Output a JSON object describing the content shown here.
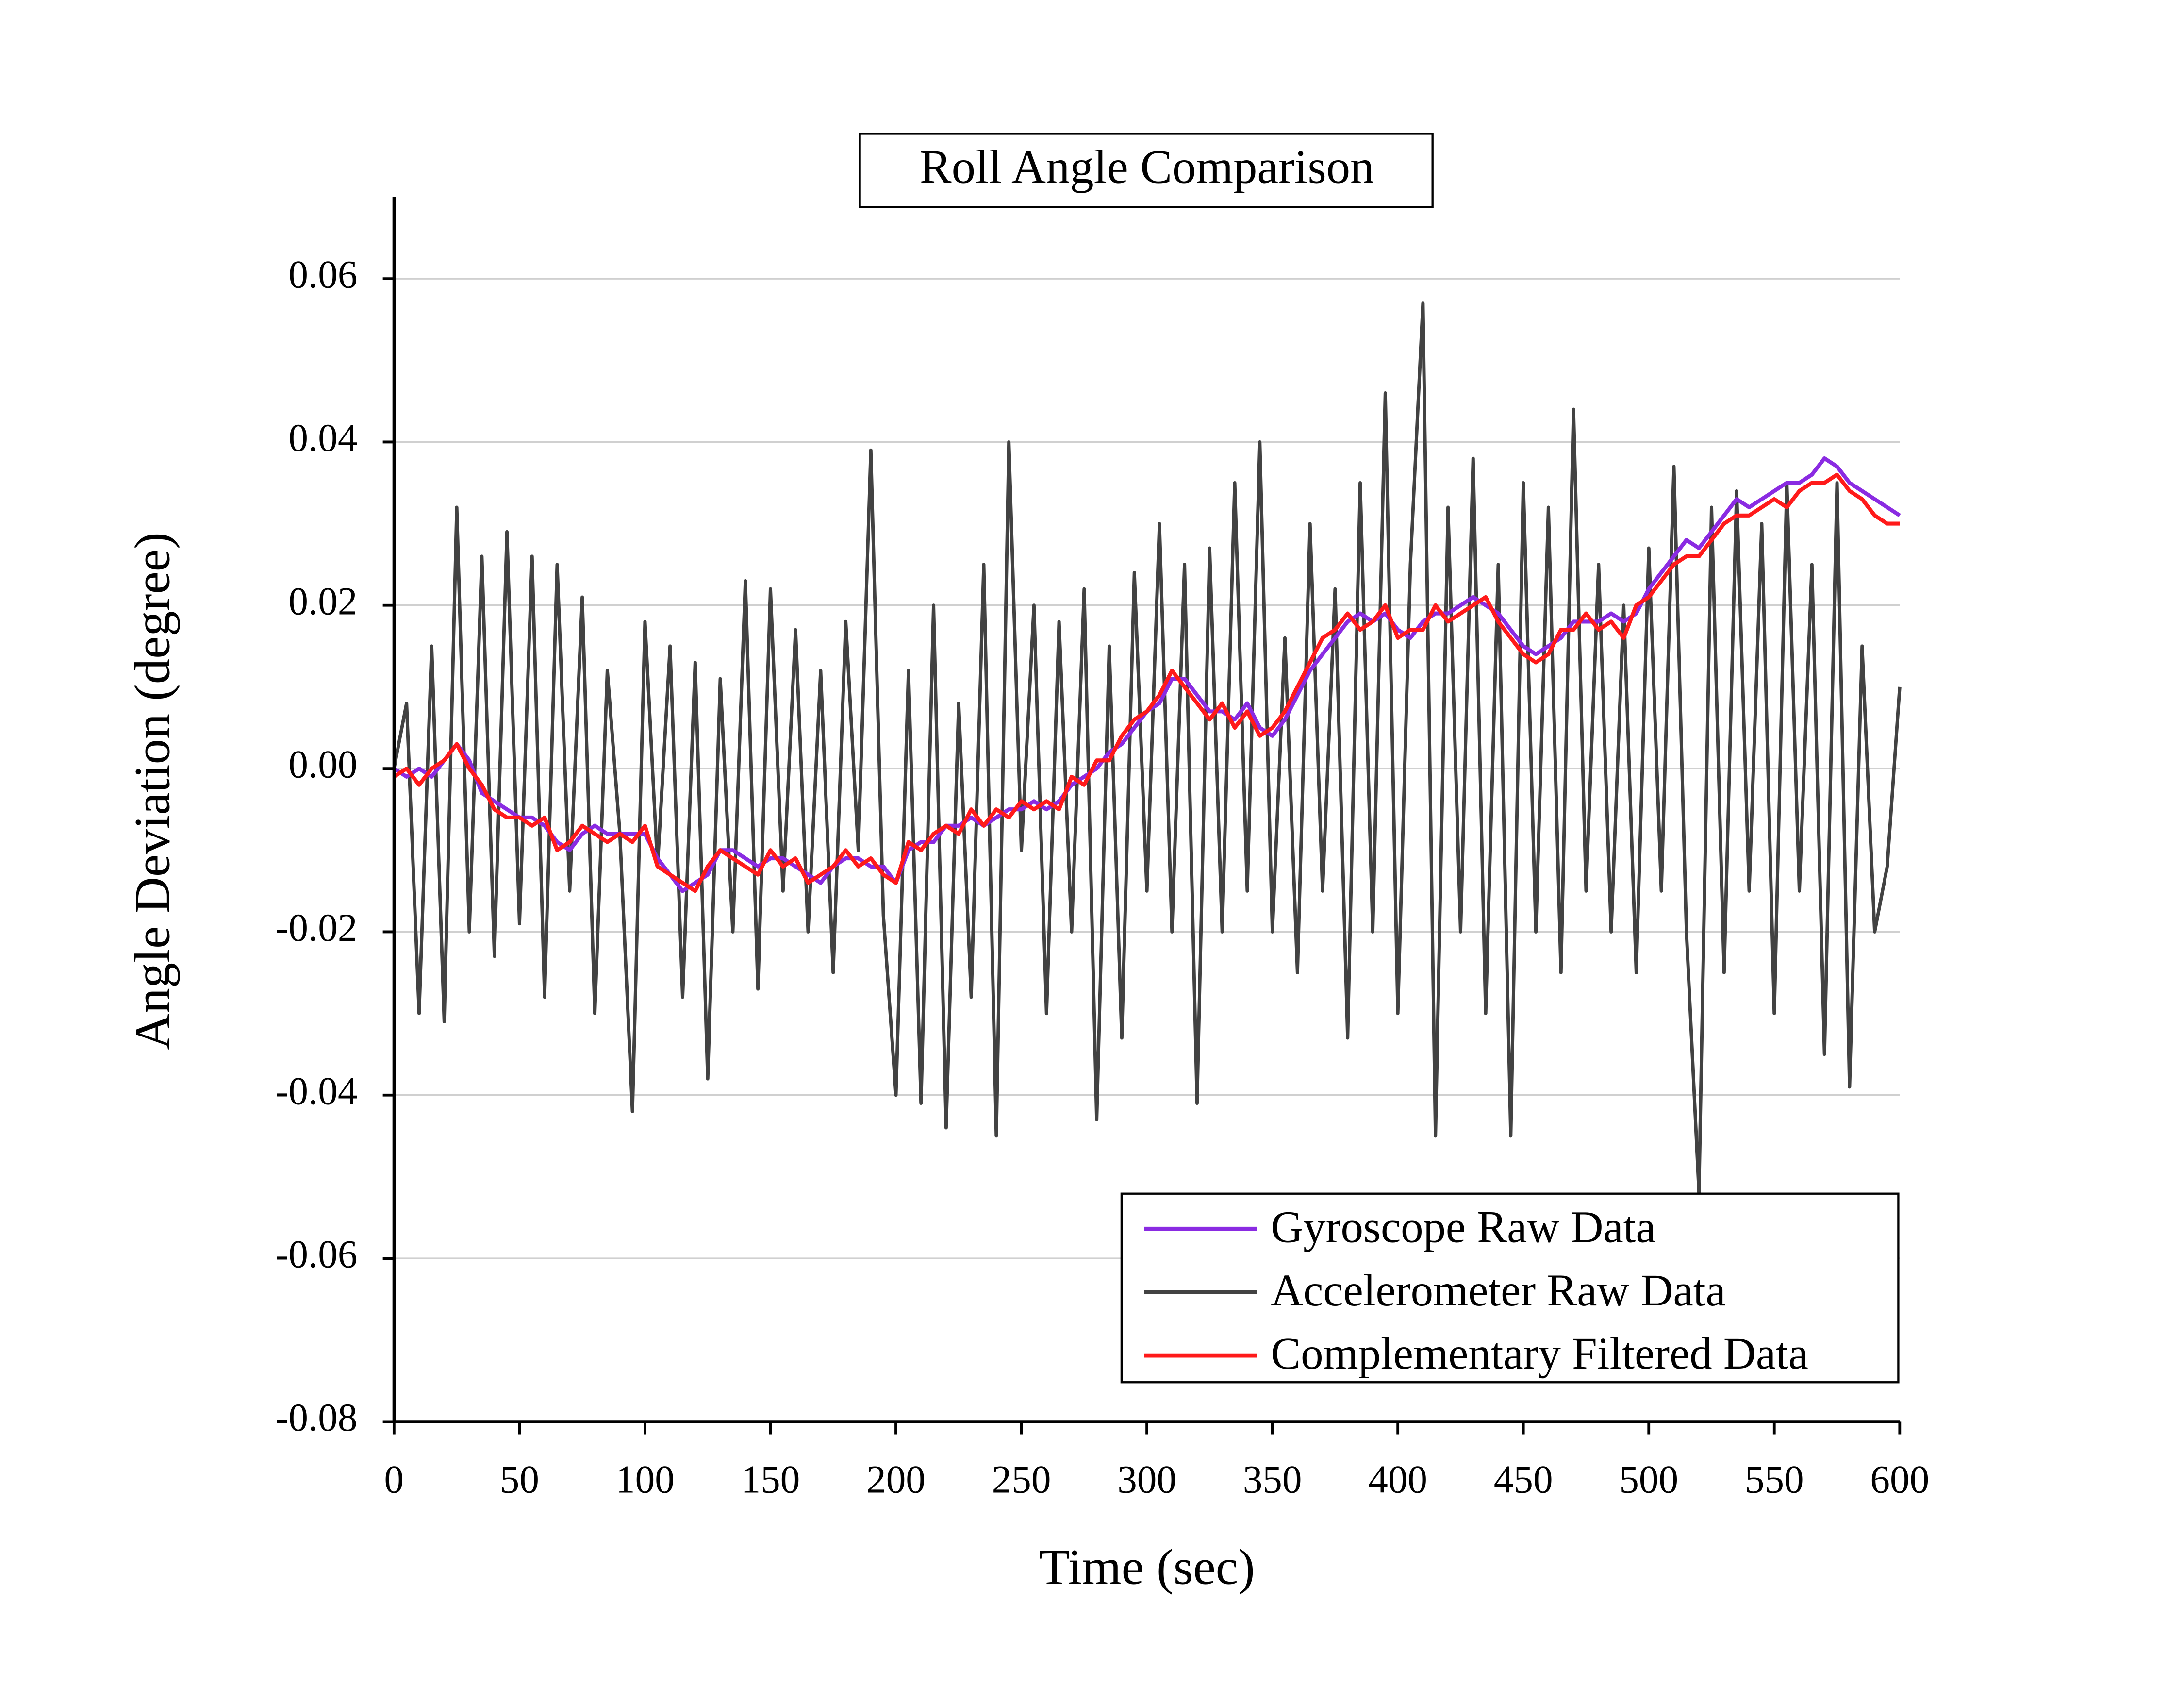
{
  "chart_data": {
    "type": "line",
    "title": "Roll Angle Comparison",
    "x_label": "Time (sec)",
    "y_label": "Angle Deviation (degree)",
    "legend": "lower right",
    "grid": true,
    "xlim": [
      0,
      600
    ],
    "xticks": [
      0,
      50,
      100,
      150,
      200,
      250,
      300,
      350,
      400,
      450,
      500,
      550,
      600
    ],
    "ylim": [
      -0.08,
      0.07
    ],
    "yticks": [
      -0.08,
      -0.06,
      -0.04,
      -0.02,
      {
        "value": 0,
        "label": "0.00"
      },
      0.02,
      0.04,
      0.06
    ],
    "x": [
      0,
      5,
      10,
      15,
      20,
      25,
      30,
      35,
      40,
      45,
      50,
      55,
      60,
      65,
      70,
      75,
      80,
      85,
      90,
      95,
      100,
      105,
      110,
      115,
      120,
      125,
      130,
      135,
      140,
      145,
      150,
      155,
      160,
      165,
      170,
      175,
      180,
      185,
      190,
      195,
      200,
      205,
      210,
      215,
      220,
      225,
      230,
      235,
      240,
      245,
      250,
      255,
      260,
      265,
      270,
      275,
      280,
      285,
      290,
      295,
      300,
      305,
      310,
      315,
      320,
      325,
      330,
      335,
      340,
      345,
      350,
      355,
      360,
      365,
      370,
      375,
      380,
      385,
      390,
      395,
      400,
      405,
      410,
      415,
      420,
      425,
      430,
      435,
      440,
      445,
      450,
      455,
      460,
      465,
      470,
      475,
      480,
      485,
      490,
      495,
      500,
      505,
      510,
      515,
      520,
      525,
      530,
      535,
      540,
      545,
      550,
      555,
      560,
      565,
      570,
      575,
      580,
      585,
      590,
      595,
      600
    ],
    "series": [
      {
        "name": "Accelerometer Raw Data",
        "color": "#424242",
        "values": [
          0,
          0.008,
          -0.03,
          0.015,
          -0.031,
          0.032,
          -0.02,
          0.026,
          -0.023,
          0.029,
          -0.019,
          0.026,
          -0.028,
          0.025,
          -0.015,
          0.021,
          -0.03,
          0.012,
          -0.008,
          -0.042,
          0.018,
          -0.012,
          0.015,
          -0.028,
          0.013,
          -0.038,
          0.011,
          -0.02,
          0.023,
          -0.027,
          0.022,
          -0.015,
          0.017,
          -0.02,
          0.012,
          -0.025,
          0.018,
          -0.01,
          0.039,
          -0.018,
          -0.04,
          0.012,
          -0.041,
          0.02,
          -0.044,
          0.008,
          -0.028,
          0.025,
          -0.045,
          0.04,
          -0.01,
          0.02,
          -0.03,
          0.018,
          -0.02,
          0.022,
          -0.043,
          0.015,
          -0.033,
          0.024,
          -0.015,
          0.03,
          -0.02,
          0.025,
          -0.041,
          0.027,
          -0.02,
          0.035,
          -0.015,
          0.04,
          -0.02,
          0.016,
          -0.025,
          0.03,
          -0.015,
          0.022,
          -0.033,
          0.035,
          -0.02,
          0.046,
          -0.03,
          0.025,
          0.057,
          -0.045,
          0.032,
          -0.02,
          0.038,
          -0.03,
          0.025,
          -0.045,
          0.035,
          -0.02,
          0.032,
          -0.025,
          0.044,
          -0.015,
          0.025,
          -0.02,
          0.02,
          -0.025,
          0.027,
          -0.015,
          0.037,
          -0.02,
          -0.052,
          0.032,
          -0.025,
          0.034,
          -0.015,
          0.03,
          -0.03,
          0.035,
          -0.015,
          0.025,
          -0.035,
          0.035,
          -0.039,
          0.015,
          -0.02,
          -0.012,
          0.01
        ]
      },
      {
        "name": "Gyroscope Raw Data",
        "color": "#8a2be2",
        "values": [
          0,
          -0.001,
          0,
          -0.001,
          0.001,
          0.003,
          0.001,
          -0.003,
          -0.004,
          -0.005,
          -0.006,
          -0.006,
          -0.007,
          -0.009,
          -0.01,
          -0.008,
          -0.007,
          -0.008,
          -0.008,
          -0.008,
          -0.008,
          -0.011,
          -0.013,
          -0.015,
          -0.014,
          -0.013,
          -0.01,
          -0.01,
          -0.011,
          -0.012,
          -0.011,
          -0.011,
          -0.012,
          -0.013,
          -0.014,
          -0.012,
          -0.011,
          -0.011,
          -0.012,
          -0.012,
          -0.014,
          -0.01,
          -0.009,
          -0.009,
          -0.007,
          -0.007,
          -0.006,
          -0.007,
          -0.006,
          -0.005,
          -0.005,
          -0.004,
          -0.005,
          -0.004,
          -0.002,
          -0.001,
          0,
          0.002,
          0.003,
          0.005,
          0.007,
          0.008,
          0.011,
          0.011,
          0.009,
          0.007,
          0.007,
          0.006,
          0.008,
          0.005,
          0.004,
          0.006,
          0.009,
          0.012,
          0.014,
          0.016,
          0.018,
          0.019,
          0.018,
          0.019,
          0.017,
          0.016,
          0.018,
          0.019,
          0.019,
          0.02,
          0.021,
          0.02,
          0.019,
          0.017,
          0.015,
          0.014,
          0.015,
          0.016,
          0.018,
          0.018,
          0.018,
          0.019,
          0.018,
          0.019,
          0.022,
          0.024,
          0.026,
          0.028,
          0.027,
          0.029,
          0.031,
          0.033,
          0.032,
          0.033,
          0.034,
          0.035,
          0.035,
          0.036,
          0.038,
          0.037,
          0.035,
          0.034,
          0.033,
          0.032,
          0.031
        ]
      },
      {
        "name": "Complementary Filtered Data",
        "color": "#ff1a1a",
        "values": [
          -0.001,
          0,
          -0.002,
          0,
          0.001,
          0.003,
          0,
          -0.002,
          -0.005,
          -0.006,
          -0.006,
          -0.007,
          -0.006,
          -0.01,
          -0.009,
          -0.007,
          -0.008,
          -0.009,
          -0.008,
          -0.009,
          -0.007,
          -0.012,
          -0.013,
          -0.014,
          -0.015,
          -0.012,
          -0.01,
          -0.011,
          -0.012,
          -0.013,
          -0.01,
          -0.012,
          -0.011,
          -0.014,
          -0.013,
          -0.012,
          -0.01,
          -0.012,
          -0.011,
          -0.013,
          -0.014,
          -0.009,
          -0.01,
          -0.008,
          -0.007,
          -0.008,
          -0.005,
          -0.007,
          -0.005,
          -0.006,
          -0.004,
          -0.005,
          -0.004,
          -0.005,
          -0.001,
          -0.002,
          0.001,
          0.001,
          0.004,
          0.006,
          0.007,
          0.009,
          0.012,
          0.01,
          0.008,
          0.006,
          0.008,
          0.005,
          0.007,
          0.004,
          0.005,
          0.007,
          0.01,
          0.013,
          0.016,
          0.017,
          0.019,
          0.017,
          0.018,
          0.02,
          0.016,
          0.017,
          0.017,
          0.02,
          0.018,
          0.019,
          0.02,
          0.021,
          0.018,
          0.016,
          0.014,
          0.013,
          0.014,
          0.017,
          0.017,
          0.019,
          0.017,
          0.018,
          0.016,
          0.02,
          0.021,
          0.023,
          0.025,
          0.026,
          0.026,
          0.028,
          0.03,
          0.031,
          0.031,
          0.032,
          0.033,
          0.032,
          0.034,
          0.035,
          0.035,
          0.036,
          0.034,
          0.033,
          0.031,
          0.03,
          0.03
        ]
      }
    ]
  }
}
